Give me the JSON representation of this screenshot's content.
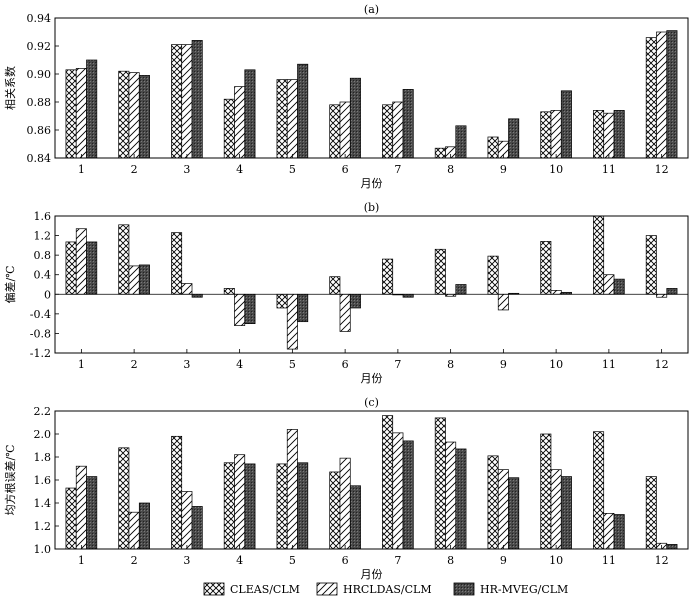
{
  "chart_data": [
    {
      "type": "bar",
      "title": "(a)",
      "xlabel": "月份",
      "ylabel": "相关系数",
      "categories": [
        "1",
        "2",
        "3",
        "4",
        "5",
        "6",
        "7",
        "8",
        "9",
        "10",
        "11",
        "12"
      ],
      "ylim": [
        0.84,
        0.94
      ],
      "yticks": [
        "0.84",
        "0.86",
        "0.88",
        "0.90",
        "0.92",
        "0.94"
      ],
      "grid": false,
      "series": [
        {
          "name": "CLEAS/CLM",
          "pattern": "crosshatch",
          "values": [
            0.903,
            0.902,
            0.921,
            0.882,
            0.896,
            0.878,
            0.878,
            0.847,
            0.855,
            0.873,
            0.874,
            0.926
          ]
        },
        {
          "name": "HRCLDAS/CLM",
          "pattern": "diagonal",
          "values": [
            0.904,
            0.901,
            0.921,
            0.891,
            0.896,
            0.88,
            0.88,
            0.848,
            0.852,
            0.874,
            0.872,
            0.93
          ]
        },
        {
          "name": "HR-MVEG/CLM",
          "pattern": "dark",
          "values": [
            0.91,
            0.899,
            0.924,
            0.903,
            0.907,
            0.897,
            0.889,
            0.863,
            0.868,
            0.888,
            0.874,
            0.931
          ]
        }
      ]
    },
    {
      "type": "bar",
      "title": "(b)",
      "xlabel": "月份",
      "ylabel": "偏差/℃",
      "categories": [
        "1",
        "2",
        "3",
        "4",
        "5",
        "6",
        "7",
        "8",
        "9",
        "10",
        "11",
        "12"
      ],
      "ylim": [
        -1.2,
        1.6
      ],
      "yticks": [
        "-1.2",
        "-0.8",
        "-0.4",
        "0",
        "0.4",
        "0.8",
        "1.2",
        "1.6"
      ],
      "grid": false,
      "series": [
        {
          "name": "CLEAS/CLM",
          "pattern": "crosshatch",
          "values": [
            1.07,
            1.42,
            1.26,
            0.12,
            -0.28,
            0.36,
            0.72,
            0.92,
            0.78,
            1.08,
            1.6,
            1.2
          ]
        },
        {
          "name": "HRCLDAS/CLM",
          "pattern": "diagonal",
          "values": [
            1.34,
            0.58,
            0.22,
            -0.64,
            -1.12,
            -0.76,
            0.0,
            -0.04,
            -0.32,
            0.08,
            0.4,
            -0.06
          ]
        },
        {
          "name": "HR-MVEG/CLM",
          "pattern": "dark",
          "values": [
            1.07,
            0.6,
            -0.06,
            -0.6,
            -0.56,
            -0.28,
            -0.06,
            0.2,
            0.02,
            0.04,
            0.31,
            0.12
          ]
        }
      ]
    },
    {
      "type": "bar",
      "title": "(c)",
      "xlabel": "月份",
      "ylabel": "均方根误差/℃",
      "categories": [
        "1",
        "2",
        "3",
        "4",
        "5",
        "6",
        "7",
        "8",
        "9",
        "10",
        "11",
        "12"
      ],
      "ylim": [
        1.0,
        2.2
      ],
      "yticks": [
        "1.0",
        "1.2",
        "1.4",
        "1.6",
        "1.8",
        "2.0",
        "2.2"
      ],
      "grid": false,
      "series": [
        {
          "name": "CLEAS/CLM",
          "pattern": "crosshatch",
          "values": [
            1.53,
            1.88,
            1.98,
            1.75,
            1.74,
            1.67,
            2.16,
            2.14,
            1.81,
            2.0,
            2.02,
            1.63
          ]
        },
        {
          "name": "HRCLDAS/CLM",
          "pattern": "diagonal",
          "values": [
            1.72,
            1.32,
            1.5,
            1.82,
            2.04,
            1.79,
            2.01,
            1.93,
            1.69,
            1.69,
            1.31,
            1.05
          ]
        },
        {
          "name": "HR-MVEG/CLM",
          "pattern": "dark",
          "values": [
            1.63,
            1.4,
            1.37,
            1.74,
            1.75,
            1.55,
            1.94,
            1.87,
            1.62,
            1.63,
            1.3,
            1.04
          ]
        }
      ]
    }
  ],
  "legend": {
    "position": "bottom",
    "items": [
      "CLEAS/CLM",
      "HRCLDAS/CLM",
      "HR-MVEG/CLM"
    ]
  }
}
